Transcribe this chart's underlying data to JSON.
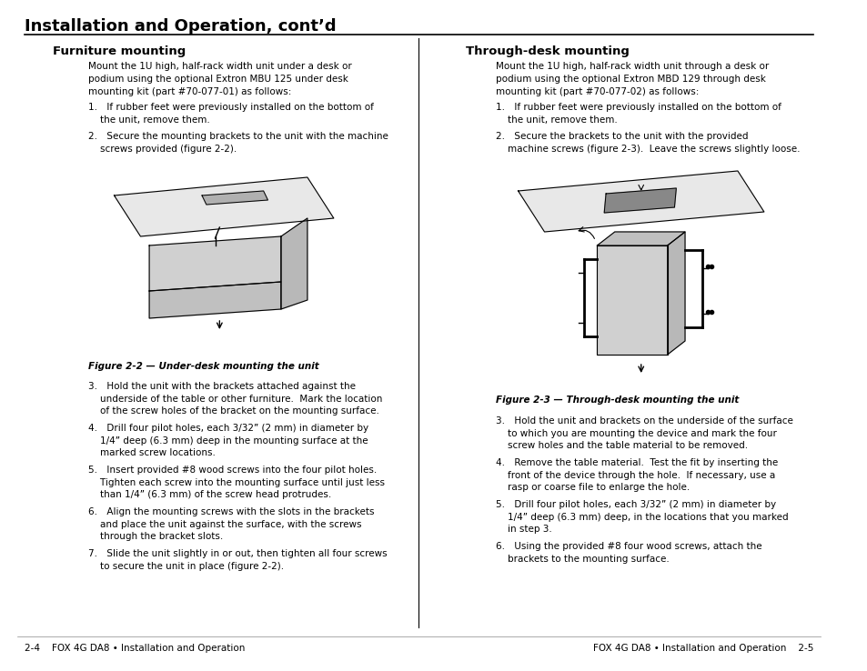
{
  "title": "Installation and Operation, cont’d",
  "left_section_title": "Furniture mounting",
  "right_section_title": "Through-desk mounting",
  "left_intro": "Mount the 1U high, half-rack width unit under a desk or\npodium using the optional Extron MBU 125 under desk\nmounting kit (part #70-077-01) as follows:",
  "right_intro": "Mount the 1U high, half-rack width unit through a desk or\npodium using the optional Extron MBD 129 through desk\nmounting kit (part #70-077-02) as follows:",
  "left_steps_12": [
    "1. If rubber feet were previously installed on the bottom of\n    the unit, remove them.",
    "2. Secure the mounting brackets to the unit with the machine\n    screws provided (figure 2-2)."
  ],
  "left_fig_caption": "Figure 2-2 — Under-desk mounting the unit",
  "left_steps_37": [
    "3. Hold the unit with the brackets attached against the\n    underside of the table or other furniture.  Mark the location\n    of the screw holes of the bracket on the mounting surface.",
    "4. Drill four pilot holes, each 3/32” (2 mm) in diameter by\n    1/4” deep (6.3 mm) deep in the mounting surface at the\n    marked screw locations.",
    "5. Insert provided #8 wood screws into the four pilot holes.\n    Tighten each screw into the mounting surface until just less\n    than 1/4” (6.3 mm) of the screw head protrudes.",
    "6. Align the mounting screws with the slots in the brackets\n    and place the unit against the surface, with the screws\n    through the bracket slots.",
    "7. Slide the unit slightly in or out, then tighten all four screws\n    to secure the unit in place (figure 2-2)."
  ],
  "right_steps_12": [
    "1. If rubber feet were previously installed on the bottom of\n    the unit, remove them.",
    "2. Secure the brackets to the unit with the provided\n    machine screws (figure 2-3).  Leave the screws slightly loose."
  ],
  "right_fig_caption": "Figure 2-3 — Through-desk mounting the unit",
  "right_steps_36": [
    "3. Hold the unit and brackets on the underside of the surface\n    to which you are mounting the device and mark the four\n    screw holes and the table material to be removed.",
    "4. Remove the table material.  Test the fit by inserting the\n    front of the device through the hole.  If necessary, use a\n    rasp or coarse file to enlarge the hole.",
    "5. Drill four pilot holes, each 3/32” (2 mm) in diameter by\n    1/4” deep (6.3 mm) deep, in the locations that you marked\n    in step 3.",
    "6. Using the provided #8 four wood screws, attach the\n    brackets to the mounting surface."
  ],
  "footer_left": "2-4    FOX 4G DA8 • Installation and Operation",
  "footer_right": "FOX 4G DA8 • Installation and Operation    2-5",
  "bg_color": "#ffffff",
  "text_color": "#000000",
  "title_color": "#000000"
}
